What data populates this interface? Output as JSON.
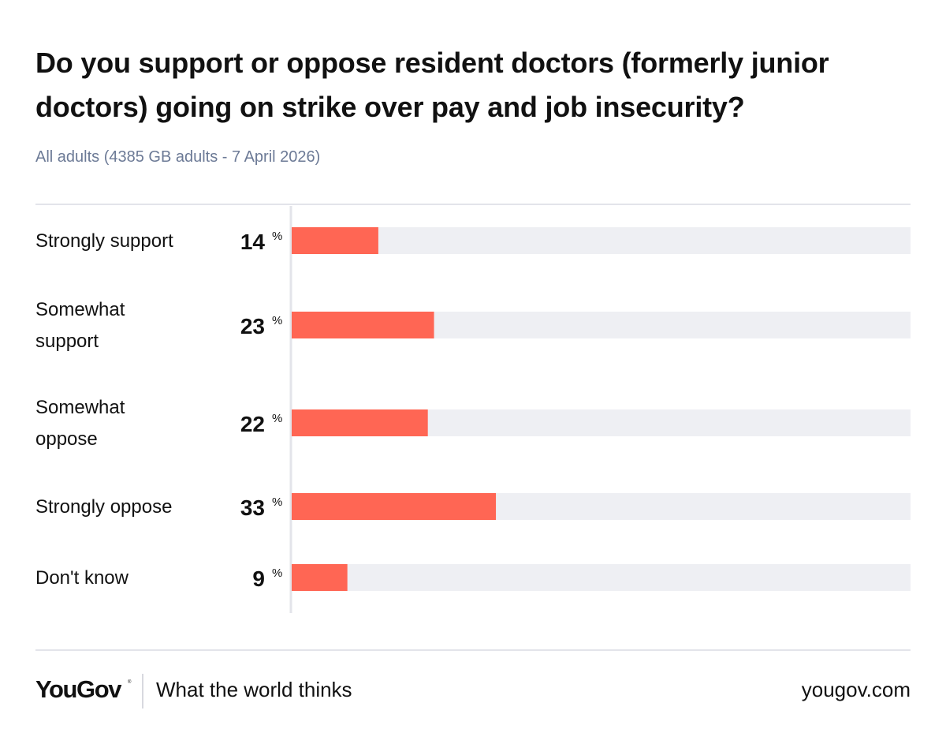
{
  "header": {
    "title": "Do you support or oppose resident doctors (formerly junior doctors) going on strike over pay and job insecurity?",
    "subtitle": "All adults (4385 GB adults - 7 April 2026)"
  },
  "chart_data": {
    "type": "bar",
    "orientation": "horizontal",
    "title": "Do you support or oppose resident doctors (formerly junior doctors) going on strike over pay and job insecurity?",
    "subtitle": "All adults (4385 GB adults - 7 April 2026)",
    "categories": [
      [
        "Strongly support"
      ],
      [
        "Somewhat",
        "support"
      ],
      [
        "Somewhat",
        "oppose"
      ],
      [
        "Strongly oppose"
      ],
      [
        "Don't know"
      ]
    ],
    "values": [
      14,
      23,
      22,
      33,
      9
    ],
    "unit": "%",
    "xlim": [
      0,
      100
    ],
    "xlabel": "",
    "ylabel": "",
    "grid": false,
    "bar_color": "#ff6654",
    "track_color": "#eeeff3"
  },
  "footer": {
    "logo": "YouGov",
    "logo_mark": "®",
    "tagline": "What the world thinks",
    "site": "yougov.com"
  }
}
